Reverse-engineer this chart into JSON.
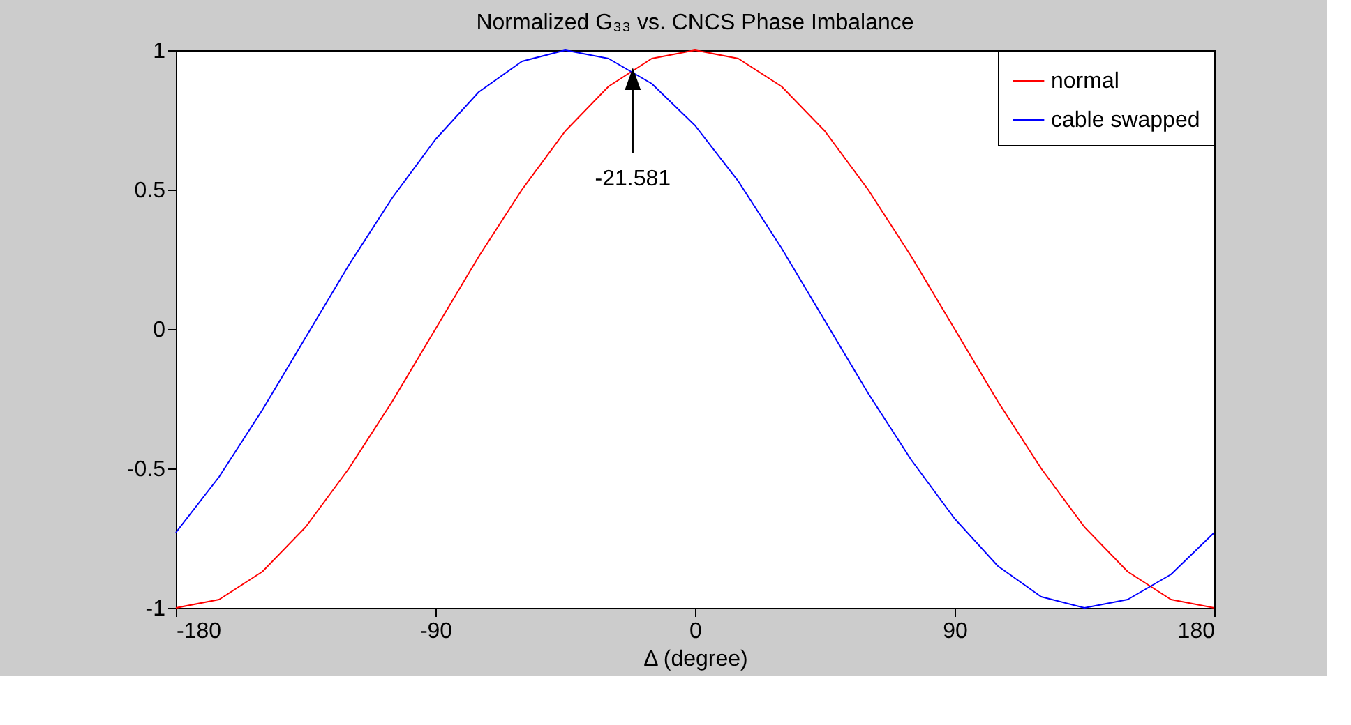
{
  "chart_data": {
    "type": "line",
    "title": "Normalized G₃₃ vs. CNCS Phase Imbalance",
    "xlabel": "Δ (degree)",
    "x": [
      -180,
      -165,
      -150,
      -135,
      -120,
      -105,
      -90,
      -75,
      -60,
      -45,
      -30,
      -15,
      0,
      15,
      30,
      45,
      60,
      75,
      90,
      105,
      120,
      135,
      150,
      165,
      180
    ],
    "series": [
      {
        "name": "normal",
        "color": "#ff0000",
        "values": [
          -1,
          -0.97,
          -0.87,
          -0.71,
          -0.5,
          -0.26,
          0,
          0.26,
          0.5,
          0.71,
          0.87,
          0.97,
          1,
          0.97,
          0.87,
          0.71,
          0.5,
          0.26,
          0,
          -0.26,
          -0.5,
          -0.71,
          -0.87,
          -0.97,
          -1
        ]
      },
      {
        "name": "cable swapped",
        "color": "#0000ff",
        "values": [
          -0.73,
          -0.53,
          -0.29,
          -0.03,
          0.23,
          0.47,
          0.68,
          0.85,
          0.96,
          1.0,
          0.97,
          0.88,
          0.73,
          0.53,
          0.29,
          0.03,
          -0.23,
          -0.47,
          -0.68,
          -0.85,
          -0.96,
          -1.0,
          -0.97,
          -0.88,
          -0.73
        ]
      }
    ],
    "xlim": [
      -180,
      180
    ],
    "xticks": [
      -180,
      -90,
      0,
      90,
      180
    ],
    "ylim": [
      -1,
      1
    ],
    "yticks": [
      -1,
      -0.5,
      0,
      0.5,
      1
    ],
    "annotations": [
      {
        "text": "-21.581",
        "x": -21.581,
        "y": 0.93
      }
    ],
    "legend": "top right",
    "grid": false,
    "marker": "none",
    "line_style": "solid"
  }
}
